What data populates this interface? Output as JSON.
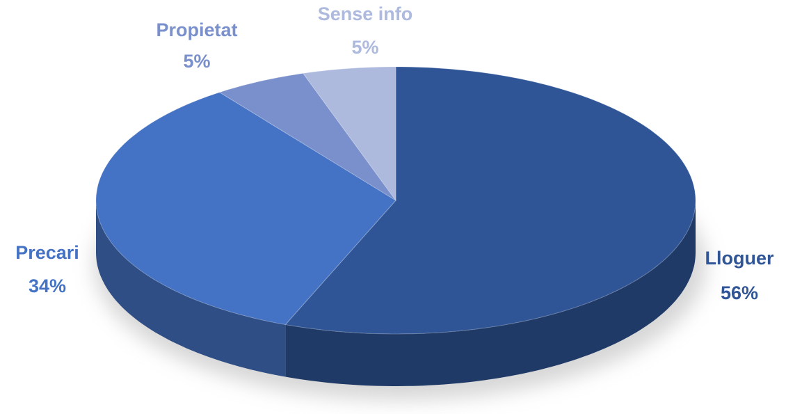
{
  "chart_data": {
    "type": "pie",
    "categories": [
      "Lloguer",
      "Precari",
      "Propietat",
      "Sense info"
    ],
    "values": [
      56,
      34,
      5,
      5
    ],
    "value_labels": [
      "56%",
      "34%",
      "5%",
      "5%"
    ],
    "colors": [
      "#2f5597",
      "#4472c4",
      "#7a90cc",
      "#adbade"
    ]
  }
}
